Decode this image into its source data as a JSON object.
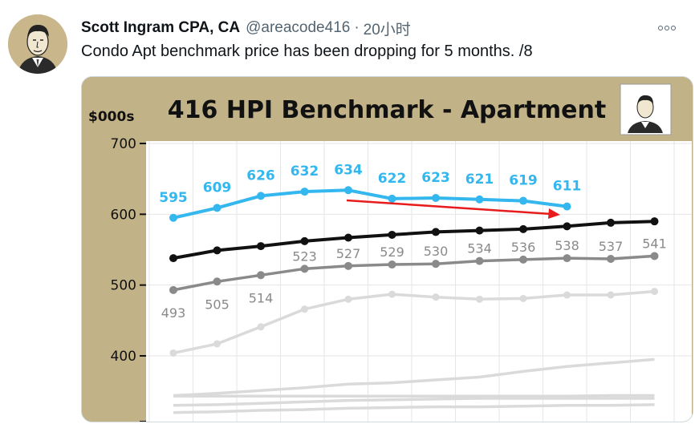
{
  "tweet": {
    "author_name": "Scott Ingram CPA, CA",
    "handle": "@areacode416",
    "separator": "·",
    "time": "20小时",
    "text": "Condo Apt benchmark price has been dropping for 5 months. /8"
  },
  "icons": {
    "avatar": "caricature-portrait",
    "more": "more-horizontal-icon"
  },
  "colors": {
    "brand_frame": "#c2b287",
    "series_blue": "#33b7ee",
    "series_black": "#111111",
    "series_gray": "#8a8a8a",
    "series_light": "#dadada",
    "arrow": "#e81c1c"
  },
  "chart_data": {
    "type": "line",
    "title": "416 HPI Benchmark - Apartment",
    "ylabel": "$000s",
    "y_ticks": [
      400,
      500,
      600,
      700
    ],
    "ylim": [
      290,
      710
    ],
    "n_points": 12,
    "series": [
      {
        "color": "blue",
        "values": [
          595,
          609,
          626,
          632,
          634,
          622,
          623,
          621,
          619,
          611
        ],
        "labels": [
          "595",
          "609",
          "626",
          "632",
          "634",
          "622",
          "623",
          "621",
          "619",
          "611"
        ]
      },
      {
        "color": "black",
        "values": [
          538,
          549,
          555,
          562,
          567,
          571,
          575,
          577,
          579,
          583,
          588,
          590
        ]
      },
      {
        "color": "gray",
        "values": [
          493,
          505,
          514,
          523,
          527,
          529,
          530,
          534,
          536,
          538,
          537,
          541
        ],
        "labels": [
          "493",
          "505",
          "514",
          "523",
          "527",
          "529",
          "530",
          "534",
          "536",
          "538",
          "537",
          "541"
        ]
      },
      {
        "color": "light",
        "values": [
          404,
          417,
          441,
          466,
          480,
          487,
          483,
          480,
          481,
          486,
          486,
          491
        ]
      },
      {
        "color": "light",
        "values": [
          344,
          347,
          351,
          355,
          360,
          362,
          366,
          370,
          378,
          385,
          390,
          395
        ]
      },
      {
        "color": "light",
        "values": [
          343,
          343,
          343,
          343,
          343,
          343,
          343,
          343,
          343,
          343,
          344,
          344
        ]
      },
      {
        "color": "light",
        "values": [
          330,
          331,
          333,
          335,
          337,
          338,
          339,
          340,
          340,
          340,
          340,
          340
        ]
      },
      {
        "color": "light",
        "values": [
          320,
          321,
          323,
          324,
          326,
          327,
          328,
          328,
          329,
          330,
          330,
          331
        ]
      }
    ],
    "annotation": "red-arrow-downtrend",
    "grid": true
  }
}
